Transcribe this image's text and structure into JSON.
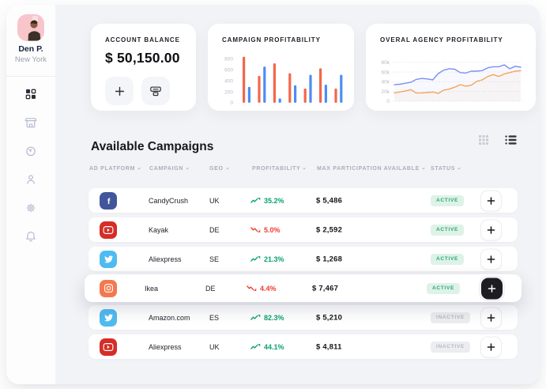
{
  "sidebar": {
    "user": {
      "name": "Den P.",
      "location": "New York"
    },
    "nav": [
      {
        "icon": "dashboard-icon",
        "active": true
      },
      {
        "icon": "store-icon",
        "active": false
      },
      {
        "icon": "history-icon",
        "active": false
      },
      {
        "icon": "profile-icon",
        "active": false
      },
      {
        "icon": "settings-icon",
        "active": false
      },
      {
        "icon": "notifications-icon",
        "active": false
      }
    ]
  },
  "balance_card": {
    "label": "ACCOUNT BALANCE",
    "value": "$ 50,150.00",
    "actions": [
      {
        "icon": "plus-icon"
      },
      {
        "icon": "withdraw-icon"
      }
    ]
  },
  "campaigns": {
    "title": "Available Campaigns",
    "view_toggle": [
      {
        "icon": "grid-view-icon",
        "active": false
      },
      {
        "icon": "list-view-icon",
        "active": true
      }
    ],
    "columns": [
      "AD PLATFORM",
      "CAMPAIGN",
      "GEO",
      "PROFITABILITY",
      "MAX PARTICIPATION AVAILABLE",
      "STATUS"
    ],
    "rows": [
      {
        "platform": "facebook",
        "campaign": "CandyCrush",
        "geo": "UK",
        "trend": "up",
        "profitability": "35.2%",
        "max": "$ 5,486",
        "status": "ACTIVE",
        "highlighted": false
      },
      {
        "platform": "youtube",
        "campaign": "Kayak",
        "geo": "DE",
        "trend": "down",
        "profitability": "5.0%",
        "max": "$ 2,592",
        "status": "ACTIVE",
        "highlighted": false
      },
      {
        "platform": "twitter",
        "campaign": "Aliexpress",
        "geo": "SE",
        "trend": "up",
        "profitability": "21.3%",
        "max": "$ 1,268",
        "status": "ACTIVE",
        "highlighted": false
      },
      {
        "platform": "instagram",
        "campaign": "Ikea",
        "geo": "DE",
        "trend": "down",
        "profitability": "4.4%",
        "max": "$ 7,467",
        "status": "ACTIVE",
        "highlighted": true
      },
      {
        "platform": "twitter",
        "campaign": "Amazon.com",
        "geo": "ES",
        "trend": "up",
        "profitability": "82.3%",
        "max": "$ 5,210",
        "status": "INACTIVE",
        "highlighted": false
      },
      {
        "platform": "youtube",
        "campaign": "Aliexpress",
        "geo": "UK",
        "trend": "up",
        "profitability": "44.1%",
        "max": "$ 4,811",
        "status": "INACTIVE",
        "highlighted": false
      }
    ]
  },
  "chart_data": [
    {
      "type": "bar",
      "title": "CAMPAIGN PROFITABILITY",
      "yticks": [
        0,
        200,
        400,
        600,
        800
      ],
      "ylim": [
        0,
        880
      ],
      "grid": false,
      "legend": false,
      "series": [
        {
          "name": "series-red",
          "color": "#f4674a",
          "values": [
            840,
            490,
            720,
            540,
            260,
            630,
            260
          ]
        },
        {
          "name": "series-blue",
          "color": "#4b8ef2",
          "values": [
            290,
            660,
            80,
            320,
            510,
            330,
            510
          ]
        }
      ]
    },
    {
      "type": "line",
      "title": "OVERAL AGENCY PROFITABILITY",
      "yticks": [
        "0",
        "20k",
        "40k",
        "60k",
        "80k"
      ],
      "ytick_values": [
        0,
        20,
        40,
        60,
        80
      ],
      "ylim": [
        0,
        88
      ],
      "unit": "k",
      "grid": true,
      "legend": false,
      "series": [
        {
          "name": "agency-blue",
          "color": "#7d90ee",
          "values": [
            34,
            35,
            37,
            39,
            45,
            47,
            46,
            44,
            57,
            64,
            67,
            66,
            59,
            58,
            62,
            62,
            63,
            69,
            71,
            71,
            75,
            67,
            72,
            70
          ]
        },
        {
          "name": "agency-orange",
          "color": "#f4a55e",
          "values": [
            17,
            19,
            21,
            24,
            17,
            17,
            18,
            19,
            16,
            23,
            25,
            29,
            34,
            31,
            33,
            41,
            44,
            51,
            55,
            51,
            56,
            59,
            62,
            63
          ]
        }
      ]
    }
  ],
  "colors": {
    "facebook": "#41569a",
    "youtube": "#d52d27",
    "twitter": "#4fbcf1",
    "instagram": "#f3794f",
    "green": "#0aa26e",
    "red": "#f03c30"
  }
}
